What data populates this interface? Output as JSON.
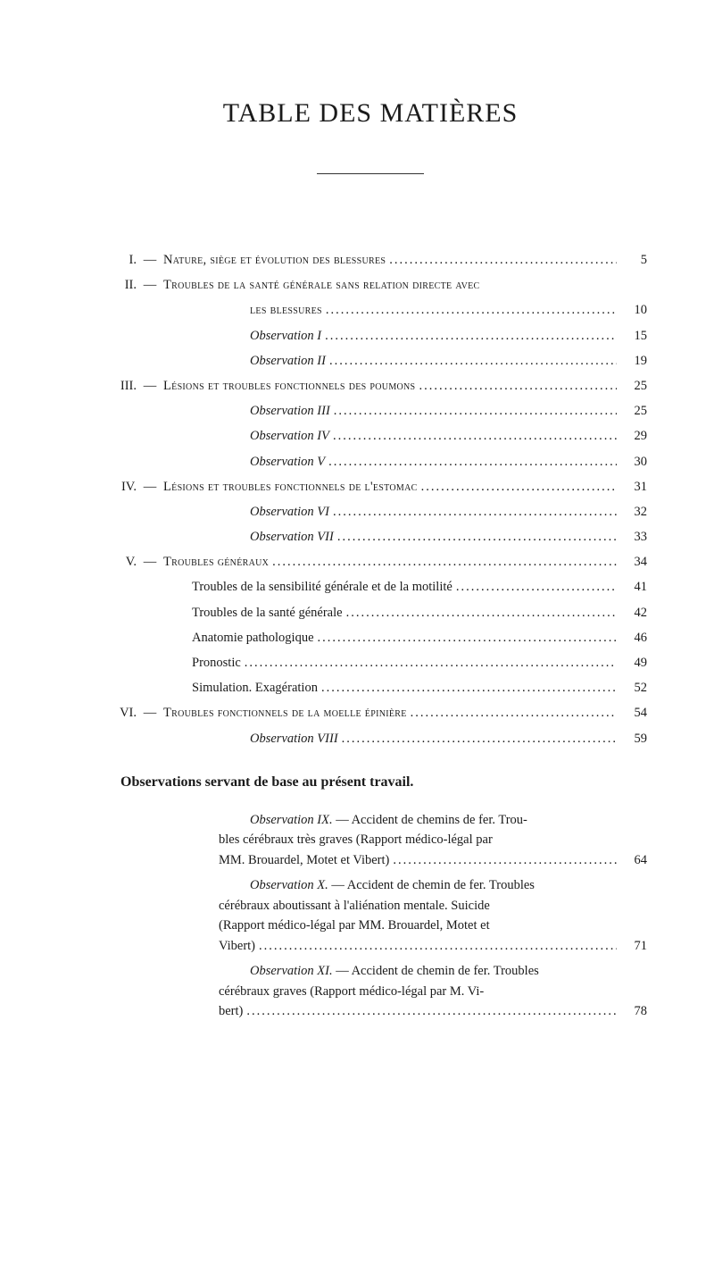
{
  "title": "TABLE DES MATIÈRES",
  "dots": "....................................................................................................",
  "entries": [
    {
      "roman": "I.",
      "dash": "—",
      "label": "Nature, siège et évolution des blessures",
      "page": "5",
      "style": "smallcaps",
      "indent": ""
    },
    {
      "roman": "II.",
      "dash": "—",
      "label": "Troubles de la santé générale sans relation directe avec",
      "page": "",
      "style": "smallcaps",
      "indent": "",
      "nodots": true
    },
    {
      "roman": "",
      "dash": "",
      "label": "les blessures",
      "page": "10",
      "style": "smallcaps",
      "indent": "indent-2"
    },
    {
      "roman": "",
      "dash": "",
      "label": "Observation I",
      "page": "15",
      "style": "italic",
      "indent": "indent-2"
    },
    {
      "roman": "",
      "dash": "",
      "label": "Observation II",
      "page": "19",
      "style": "italic",
      "indent": "indent-2"
    },
    {
      "roman": "III.",
      "dash": "—",
      "label": "Lésions et troubles fonctionnels des poumons",
      "page": "25",
      "style": "smallcaps",
      "indent": ""
    },
    {
      "roman": "",
      "dash": "",
      "label": "Observation III",
      "page": "25",
      "style": "italic",
      "indent": "indent-2"
    },
    {
      "roman": "",
      "dash": "",
      "label": "Observation IV",
      "page": "29",
      "style": "italic",
      "indent": "indent-2"
    },
    {
      "roman": "",
      "dash": "",
      "label": "Observation V",
      "page": "30",
      "style": "italic",
      "indent": "indent-2"
    },
    {
      "roman": "IV.",
      "dash": "—",
      "label": "Lésions et troubles fonctionnels de l'estomac",
      "page": "31",
      "style": "smallcaps",
      "indent": ""
    },
    {
      "roman": "",
      "dash": "",
      "label": "Observation VI",
      "page": "32",
      "style": "italic",
      "indent": "indent-2"
    },
    {
      "roman": "",
      "dash": "",
      "label": "Observation VII",
      "page": "33",
      "style": "italic",
      "indent": "indent-2"
    },
    {
      "roman": "V.",
      "dash": "—",
      "label": "Troubles généraux",
      "page": "34",
      "style": "smallcaps",
      "indent": ""
    },
    {
      "roman": "",
      "dash": "",
      "label": "Troubles de la sensibilité générale et de la motilité",
      "page": "41",
      "style": "",
      "indent": "indent-obs"
    },
    {
      "roman": "",
      "dash": "",
      "label": "Troubles de la santé générale",
      "page": "42",
      "style": "",
      "indent": "indent-obs"
    },
    {
      "roman": "",
      "dash": "",
      "label": "Anatomie pathologique",
      "page": "46",
      "style": "",
      "indent": "indent-obs"
    },
    {
      "roman": "",
      "dash": "",
      "label": "Pronostic",
      "page": "49",
      "style": "",
      "indent": "indent-obs"
    },
    {
      "roman": "",
      "dash": "",
      "label": "Simulation. Exagération",
      "page": "52",
      "style": "",
      "indent": "indent-obs"
    },
    {
      "roman": "VI.",
      "dash": "—",
      "label": "Troubles fonctionnels de la moelle épinière",
      "page": "54",
      "style": "smallcaps",
      "indent": ""
    },
    {
      "roman": "",
      "dash": "",
      "label": "Observation VIII",
      "page": "59",
      "style": "italic",
      "indent": "indent-2"
    }
  ],
  "section_heading": "Observations servant de base au présent travail.",
  "observations": [
    {
      "first": "Observation IX. — Accident de chemins de fer. Trou-",
      "continuation": [
        "bles cérébraux très graves (Rapport médico-légal par"
      ],
      "last": "MM. Brouardel, Motet et Vibert)",
      "page": "64",
      "label_italic_end": 15
    },
    {
      "first": "Observation X. — Accident de chemin de fer. Troubles",
      "continuation": [
        "cérébraux aboutissant à l'aliénation mentale. Suicide",
        "(Rapport médico-légal par MM. Brouardel, Motet et"
      ],
      "last": "Vibert)",
      "page": "71",
      "label_italic_end": 14
    },
    {
      "first": "Observation XI. — Accident de chemin de fer. Troubles",
      "continuation": [
        "cérébraux graves (Rapport médico-légal par M. Vi-"
      ],
      "last": "bert)",
      "page": "78",
      "label_italic_end": 15
    }
  ]
}
